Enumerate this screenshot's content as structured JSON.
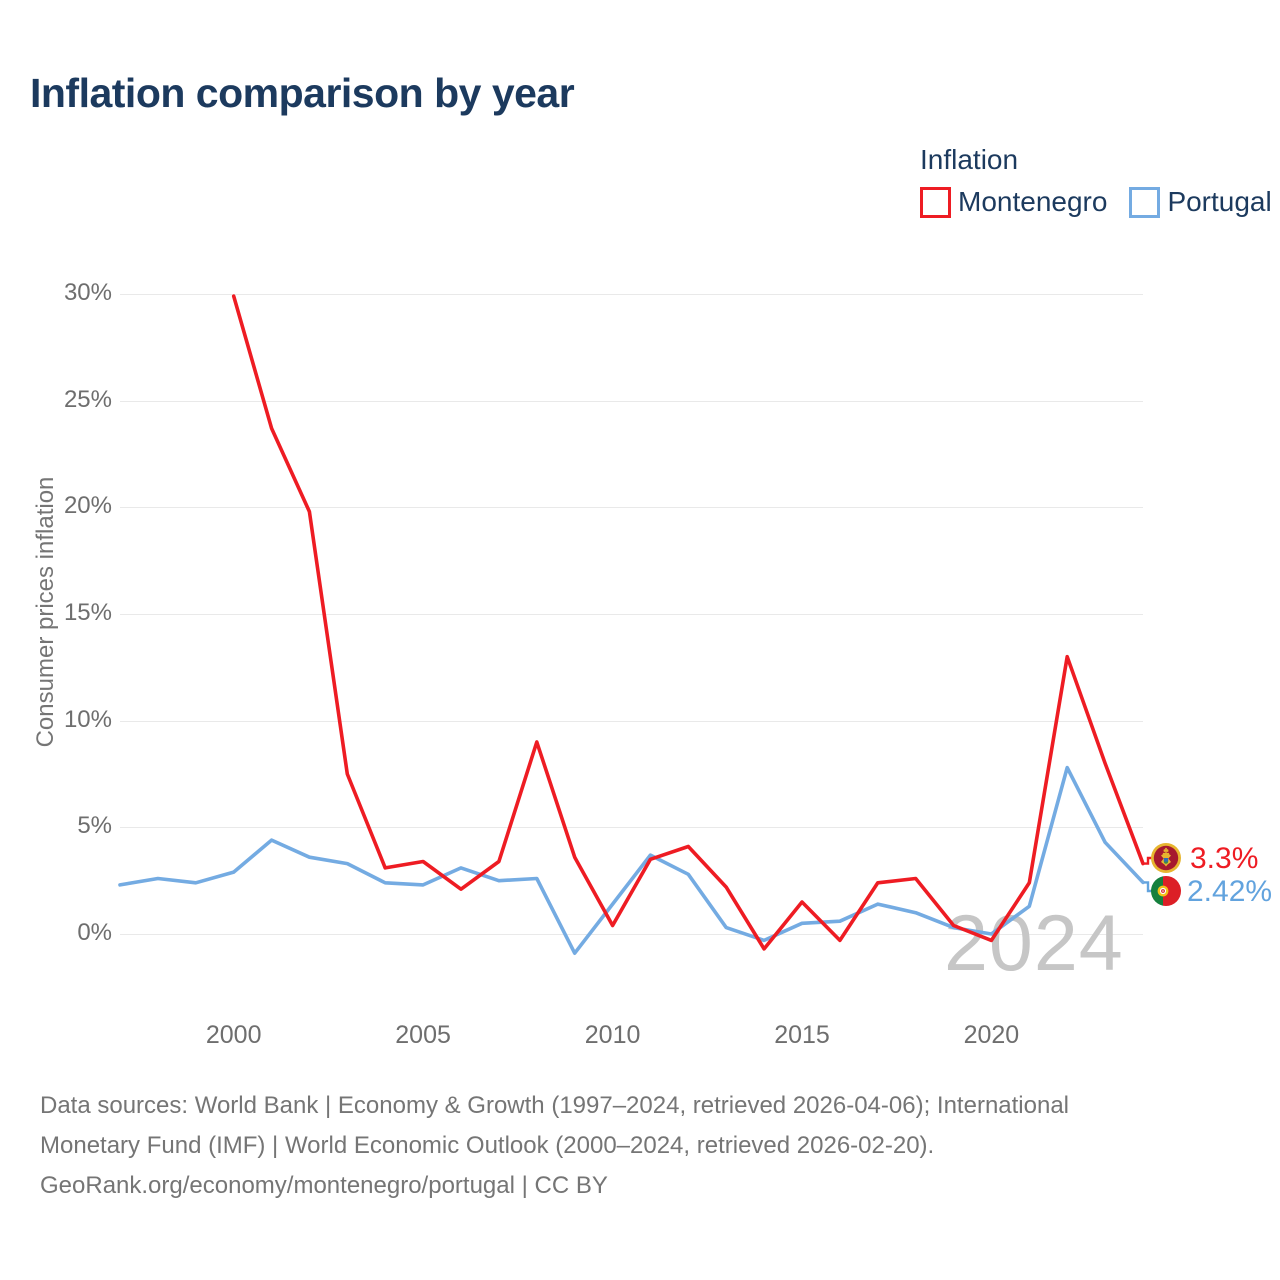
{
  "title": "Inflation comparison by year",
  "legend": {
    "title": "Inflation",
    "items": [
      {
        "label": "Montenegro",
        "color": "#ee1c23"
      },
      {
        "label": "Portugal",
        "color": "#74abe2"
      }
    ]
  },
  "watermark": "2024",
  "end_labels": [
    {
      "series": "Montenegro",
      "label": "3.3%",
      "color": "#ee1c23",
      "flag_y": 858
    },
    {
      "series": "Portugal",
      "label": "2.42%",
      "color": "#62a3de",
      "flag_y": 891
    }
  ],
  "footer": {
    "line1": "Data sources: World Bank | Economy & Growth (1997–2024, retrieved 2026-04-06); International",
    "line2": "Monetary Fund (IMF) | World Economic Outlook (2000–2024, retrieved 2026-02-20).",
    "line3": "GeoRank.org/economy/montenegro/portugal | CC BY"
  },
  "chart_data": {
    "type": "line",
    "title": "Inflation comparison by year",
    "xlabel": "",
    "ylabel": "Consumer prices inflation",
    "xlim": [
      1997,
      2024
    ],
    "ylim": [
      -3,
      31
    ],
    "grid": true,
    "legend_position": "top-right",
    "y_ticks": [
      {
        "value": 0,
        "label": "0%"
      },
      {
        "value": 5,
        "label": "5%"
      },
      {
        "value": 10,
        "label": "10%"
      },
      {
        "value": 15,
        "label": "15%"
      },
      {
        "value": 20,
        "label": "20%"
      },
      {
        "value": 25,
        "label": "25%"
      },
      {
        "value": 30,
        "label": "30%"
      }
    ],
    "x_ticks": [
      {
        "value": 2000,
        "label": "2000"
      },
      {
        "value": 2005,
        "label": "2005"
      },
      {
        "value": 2010,
        "label": "2010"
      },
      {
        "value": 2015,
        "label": "2015"
      },
      {
        "value": 2020,
        "label": "2020"
      }
    ],
    "series": [
      {
        "name": "Portugal",
        "color": "#74abe2",
        "x": [
          1997,
          1998,
          1999,
          2000,
          2001,
          2002,
          2003,
          2004,
          2005,
          2006,
          2007,
          2008,
          2009,
          2010,
          2011,
          2012,
          2013,
          2014,
          2015,
          2016,
          2017,
          2018,
          2019,
          2020,
          2021,
          2022,
          2023,
          2024
        ],
        "values": [
          2.3,
          2.6,
          2.4,
          2.9,
          4.4,
          3.6,
          3.3,
          2.4,
          2.3,
          3.1,
          2.5,
          2.6,
          -0.9,
          1.4,
          3.7,
          2.8,
          0.3,
          -0.3,
          0.5,
          0.6,
          1.4,
          1.0,
          0.3,
          0.0,
          1.3,
          7.8,
          4.3,
          2.42
        ]
      },
      {
        "name": "Montenegro",
        "color": "#ee1c23",
        "x": [
          2000,
          2001,
          2002,
          2003,
          2004,
          2005,
          2006,
          2007,
          2008,
          2009,
          2010,
          2011,
          2012,
          2013,
          2014,
          2015,
          2016,
          2017,
          2018,
          2019,
          2020,
          2021,
          2022,
          2023,
          2024
        ],
        "values": [
          29.9,
          23.7,
          19.8,
          7.5,
          3.1,
          3.4,
          2.1,
          3.4,
          9.0,
          3.6,
          0.4,
          3.5,
          4.1,
          2.2,
          -0.7,
          1.5,
          -0.3,
          2.4,
          2.6,
          0.4,
          -0.3,
          2.4,
          13.0,
          8.0,
          3.3
        ]
      }
    ]
  }
}
